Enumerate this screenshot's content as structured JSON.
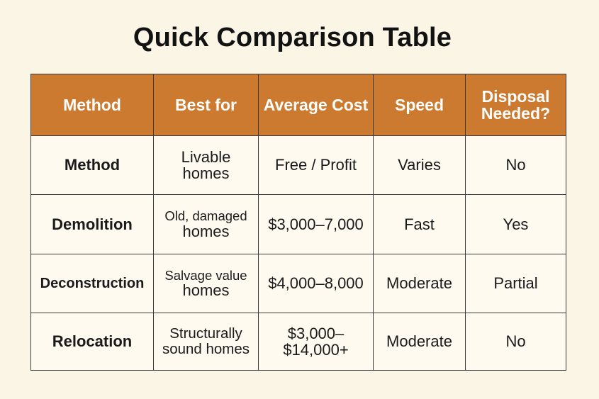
{
  "title": "Quick Comparison Table",
  "table": {
    "headers": [
      [
        "Method"
      ],
      [
        "Best for"
      ],
      [
        "Average",
        "Cost"
      ],
      [
        "Speed"
      ],
      [
        "Disposal",
        "Needed?"
      ]
    ],
    "rows": [
      {
        "method": "Method",
        "best_for": [
          "Livable",
          "homes"
        ],
        "cost": [
          "Free / Profit"
        ],
        "speed": "Varies",
        "disposal": "No"
      },
      {
        "method": "Demolition",
        "best_for": [
          "Old, damaged",
          "homes"
        ],
        "cost": [
          "$3,000–7,000"
        ],
        "speed": "Fast",
        "disposal": "Yes"
      },
      {
        "method": "Deconstruction",
        "best_for": [
          "Salvage value",
          "homes"
        ],
        "cost": [
          "$4,000–8,000"
        ],
        "speed": "Moderate",
        "disposal": "Partial"
      },
      {
        "method": "Relocation",
        "best_for": [
          "Structurally",
          "sound homes"
        ],
        "cost": [
          "$3,000–",
          "$14,000+"
        ],
        "speed": "Moderate",
        "disposal": "No"
      }
    ]
  }
}
